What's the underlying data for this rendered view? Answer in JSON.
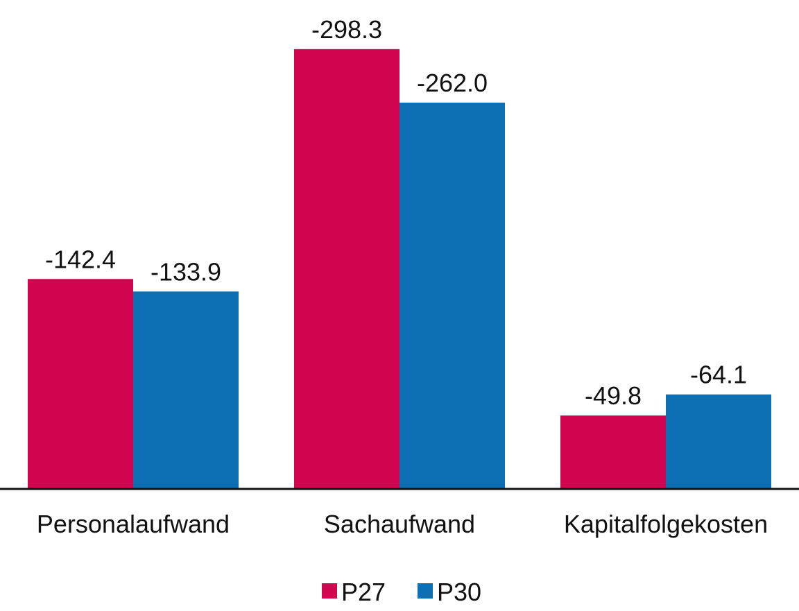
{
  "chart_data": {
    "type": "bar",
    "title": "",
    "xlabel": "",
    "ylabel": "",
    "categories": [
      "Personalaufwand",
      "Sachaufwand",
      "Kapitalfolgekosten"
    ],
    "series": [
      {
        "name": "P27",
        "color": "#D10550",
        "values": [
          -142.4,
          -298.3,
          -49.8
        ],
        "labels": [
          "-142.4",
          "-298.3",
          "-49.8"
        ]
      },
      {
        "name": "P30",
        "color": "#0C6FB4",
        "values": [
          -133.9,
          -262.0,
          -64.1
        ],
        "labels": [
          "-133.9",
          "-262.0",
          "-64.1"
        ]
      }
    ],
    "bars_extend_upward_for_negative_values": true,
    "ylim": [
      -320,
      0
    ],
    "grid": false,
    "legend_position": "bottom-center",
    "axis_color": "#111111"
  }
}
